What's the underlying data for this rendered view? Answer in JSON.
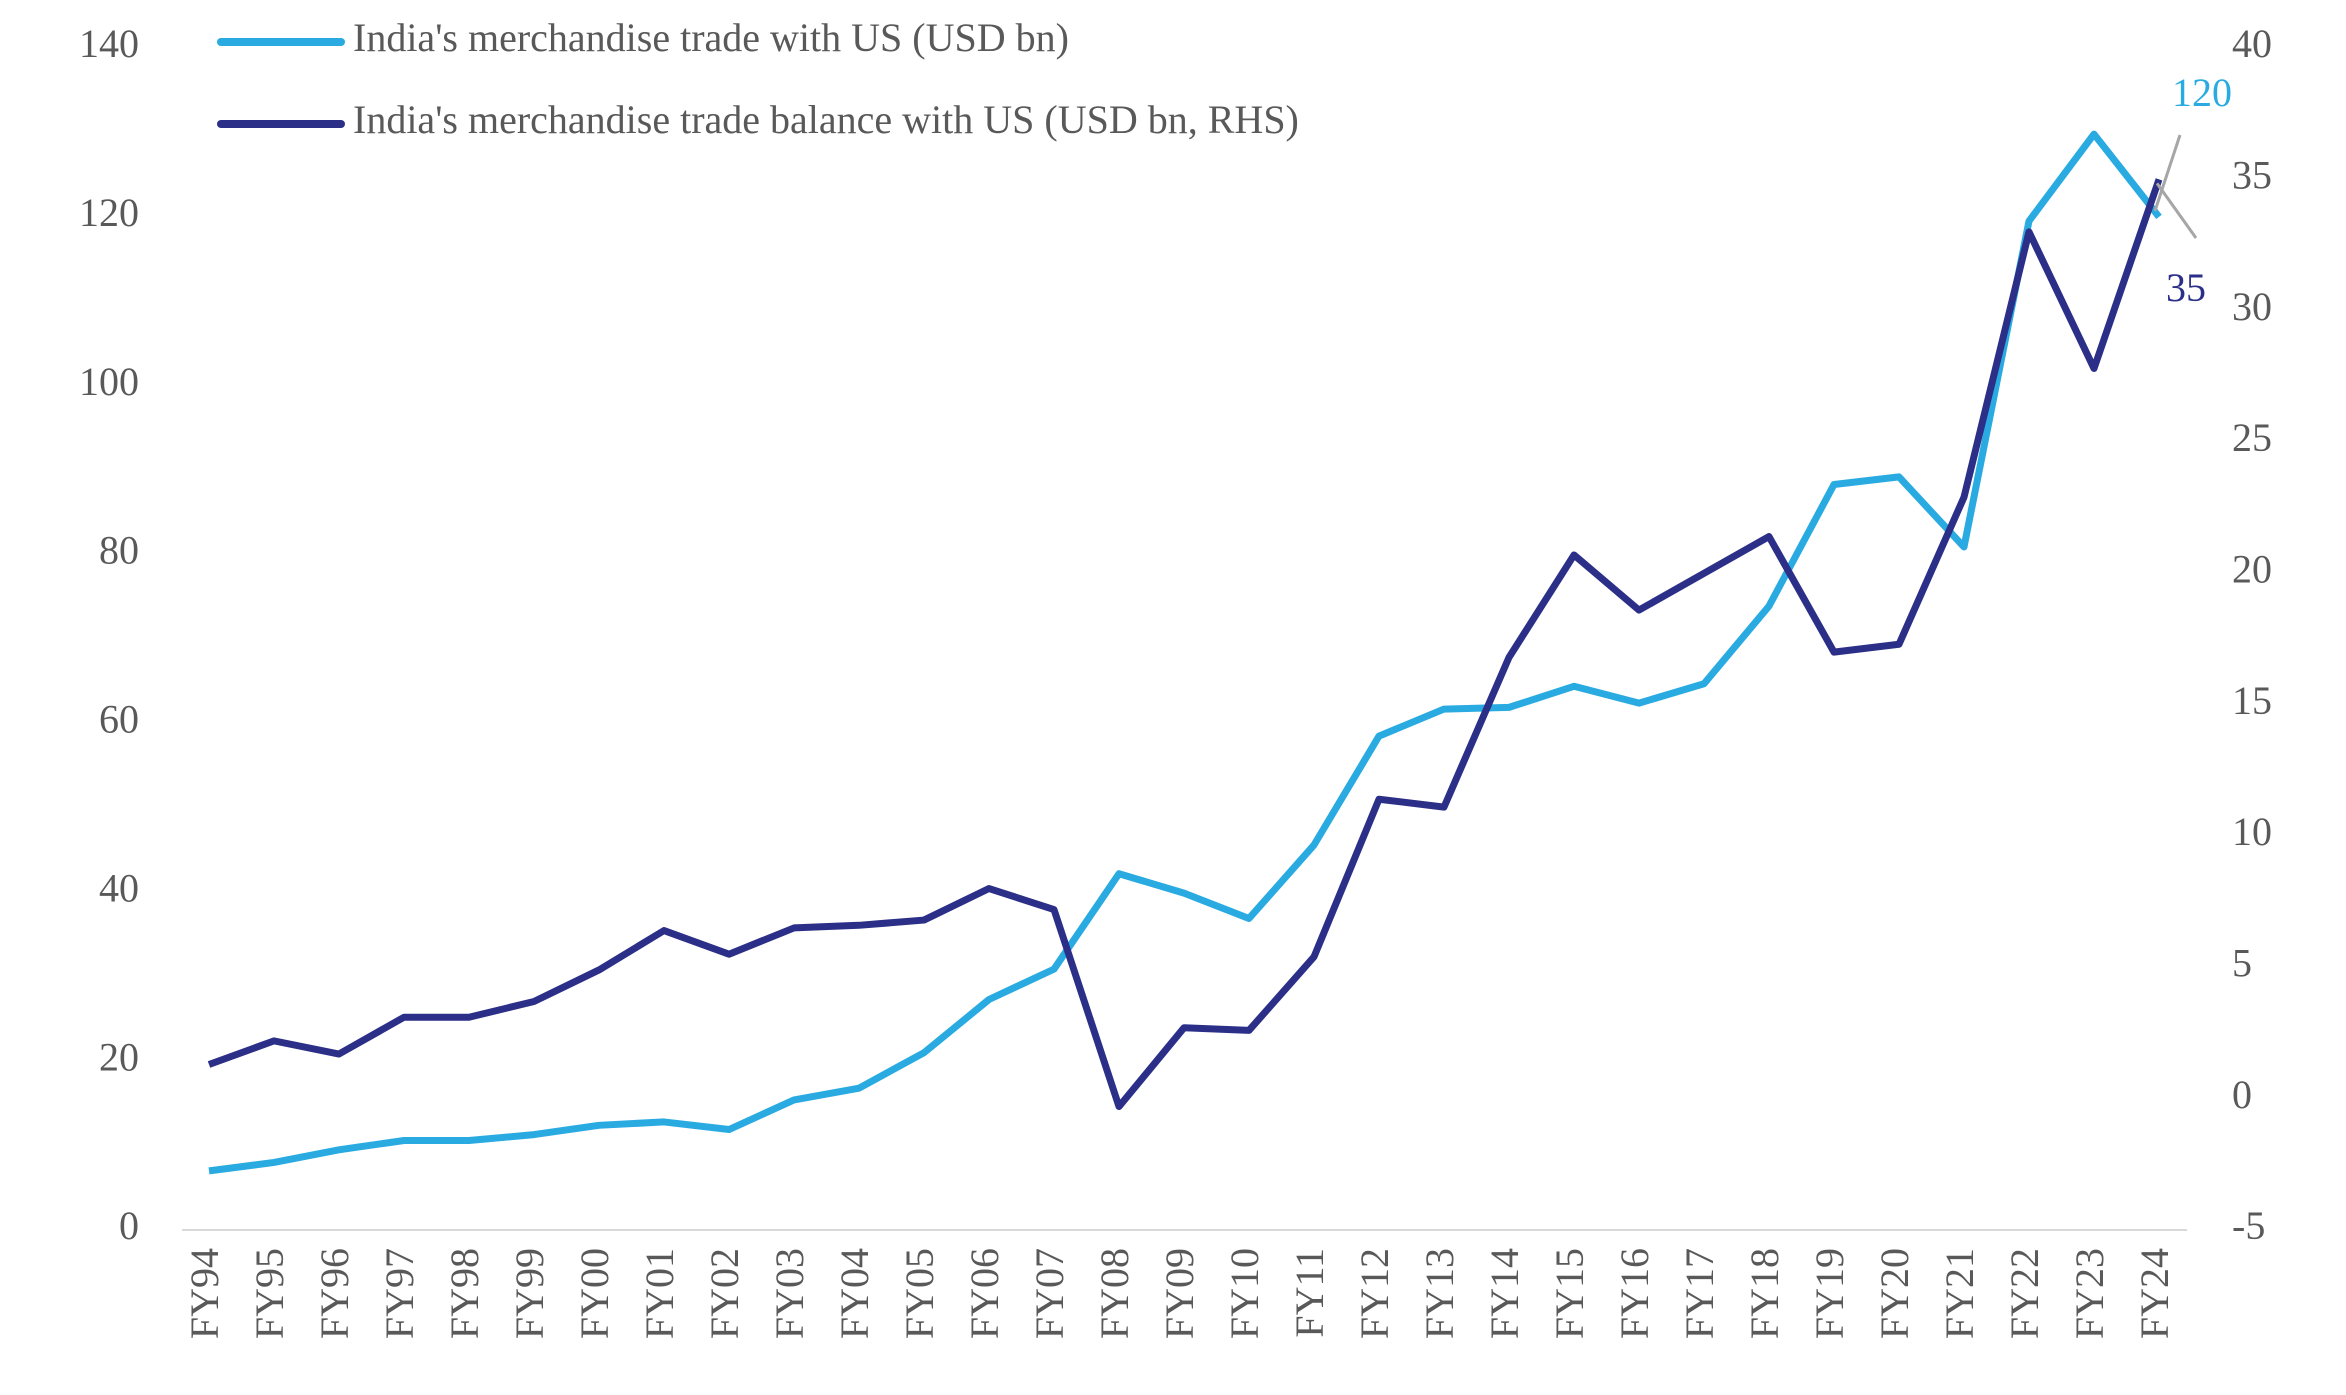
{
  "chart_data": {
    "type": "line",
    "categories": [
      "FY94",
      "FY95",
      "FY96",
      "FY97",
      "FY98",
      "FY99",
      "FY00",
      "FY01",
      "FY02",
      "FY03",
      "FY04",
      "FY05",
      "FY06",
      "FY07",
      "FY08",
      "FY09",
      "FY10",
      "FY11",
      "FY12",
      "FY13",
      "FY14",
      "FY15",
      "FY16",
      "FY17",
      "FY18",
      "FY19",
      "FY20",
      "FY21",
      "FY22",
      "FY23",
      "FY24"
    ],
    "series": [
      {
        "name": "India's merchandise trade with US (USD bn)",
        "color": "#29abe2",
        "values": [
          7,
          8,
          9.5,
          10.6,
          10.6,
          11.3,
          12.4,
          12.8,
          11.9,
          15.4,
          16.8,
          21,
          27.3,
          30.9,
          42.2,
          39.9,
          36.9,
          45.6,
          58.5,
          61.7,
          61.9,
          64.4,
          62.4,
          64.7,
          73.9,
          88.3,
          89.2,
          80.9,
          119.5,
          129.8,
          120
        ]
      },
      {
        "name": "India's merchandise trade balance with US (USD bn, RHS)",
        "color": "#2b2f87",
        "axis": "y2",
        "values": [
          1.3,
          2.2,
          1.7,
          3.1,
          3.1,
          3.7,
          4.9,
          6.4,
          5.5,
          6.5,
          6.6,
          6.8,
          8.0,
          7.2,
          -0.3,
          2.7,
          2.6,
          5.4,
          11.4,
          11.1,
          16.8,
          20.7,
          18.6,
          20.0,
          21.4,
          17.0,
          17.3,
          22.9,
          33.0,
          27.8,
          35
        ]
      }
    ],
    "ylim": [
      0,
      140
    ],
    "yticks": [
      0,
      20,
      40,
      60,
      80,
      100,
      120,
      140
    ],
    "y2lim": [
      -5,
      40
    ],
    "y2ticks": [
      -5,
      0,
      5,
      10,
      15,
      20,
      25,
      30,
      35,
      40
    ],
    "legend": "top-left",
    "grid": false
  }
}
